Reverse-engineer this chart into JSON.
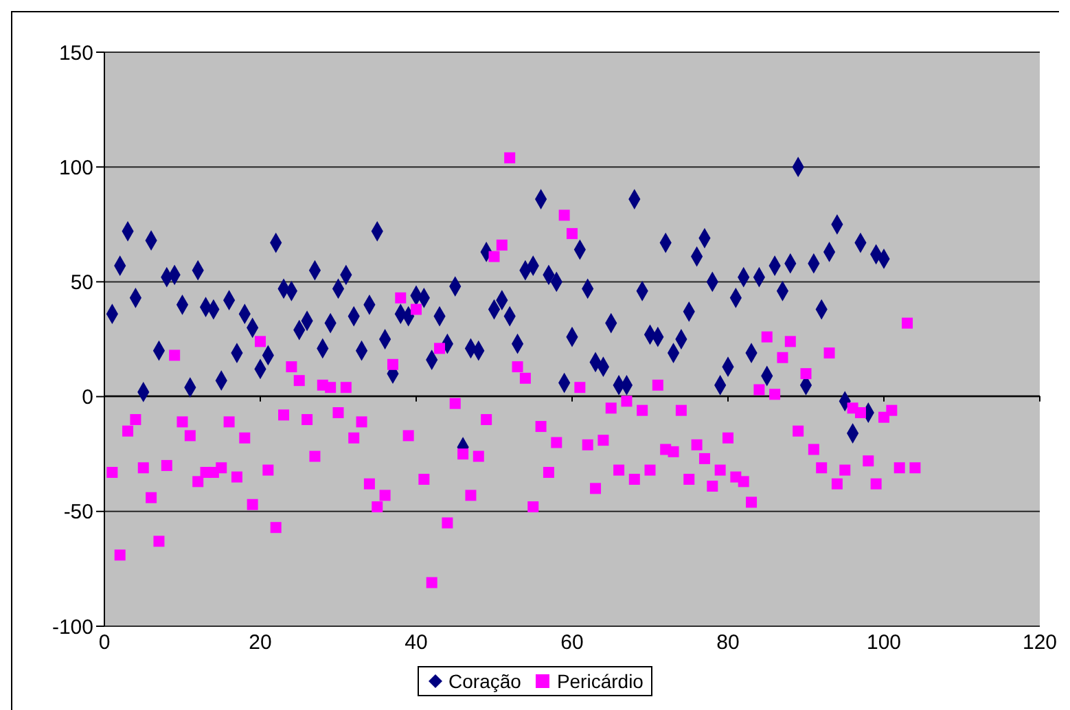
{
  "chart_data": {
    "type": "scatter",
    "xlim": [
      0,
      120
    ],
    "xticks": [
      0,
      20,
      40,
      60,
      80,
      100,
      120
    ],
    "ylim": [
      -100,
      150
    ],
    "yticks": [
      -100,
      -50,
      0,
      50,
      100,
      150
    ],
    "grid": "y",
    "legend": "bottom",
    "series": [
      {
        "name": "Coração",
        "color": "#000080",
        "marker": "diamond",
        "x": [
          1,
          2,
          3,
          4,
          5,
          6,
          7,
          8,
          9,
          10,
          11,
          12,
          13,
          14,
          15,
          16,
          17,
          18,
          19,
          20,
          21,
          22,
          23,
          24,
          25,
          26,
          27,
          28,
          29,
          30,
          31,
          32,
          33,
          34,
          35,
          36,
          37,
          38,
          39,
          40,
          41,
          42,
          43,
          44,
          45,
          46,
          47,
          48,
          49,
          50,
          51,
          52,
          53,
          54,
          55,
          56,
          57,
          58,
          59,
          60,
          61,
          62,
          63,
          64,
          65,
          66,
          67,
          68,
          69,
          70,
          71,
          72,
          73,
          74,
          75,
          76,
          77,
          78,
          79,
          80,
          81,
          82,
          83,
          84,
          85,
          86,
          87,
          88,
          89,
          90,
          91,
          92,
          93,
          94,
          95,
          96,
          97,
          98,
          99,
          100
        ],
        "values": [
          36,
          57,
          72,
          43,
          2,
          68,
          20,
          52,
          53,
          40,
          4,
          55,
          39,
          38,
          7,
          42,
          19,
          36,
          30,
          12,
          18,
          67,
          47,
          46,
          29,
          33,
          55,
          21,
          32,
          47,
          53,
          35,
          20,
          40,
          72,
          25,
          10,
          36,
          35,
          44,
          43,
          16,
          35,
          23,
          48,
          -22,
          21,
          20,
          63,
          38,
          42,
          35,
          23,
          55,
          57,
          86,
          53,
          50,
          6,
          26,
          64,
          47,
          15,
          13,
          32,
          5,
          5,
          86,
          46,
          27,
          26,
          67,
          19,
          25,
          37,
          61,
          69,
          50,
          5,
          13,
          43,
          52,
          19,
          52,
          9,
          57,
          46,
          58,
          100,
          5,
          58,
          38,
          63,
          75,
          -2,
          -16,
          67,
          -7,
          62,
          60
        ]
      },
      {
        "name": "Pericárdio",
        "color": "#ff00ff",
        "marker": "square",
        "x": [
          1,
          2,
          3,
          4,
          5,
          6,
          7,
          8,
          9,
          10,
          11,
          12,
          13,
          14,
          15,
          16,
          17,
          18,
          19,
          20,
          21,
          22,
          23,
          24,
          25,
          26,
          27,
          28,
          29,
          30,
          31,
          32,
          33,
          34,
          35,
          36,
          37,
          38,
          39,
          40,
          41,
          42,
          43,
          44,
          45,
          46,
          47,
          48,
          49,
          50,
          51,
          52,
          53,
          54,
          55,
          56,
          57,
          58,
          59,
          60,
          61,
          62,
          63,
          64,
          65,
          66,
          67,
          68,
          69,
          70,
          71,
          72,
          73,
          74,
          75,
          76,
          77,
          78,
          79,
          80,
          81,
          82,
          83,
          84,
          85,
          86,
          87,
          88,
          89,
          90,
          91,
          92,
          93,
          94,
          95,
          96,
          97,
          98,
          99,
          100,
          101,
          102,
          103,
          104
        ],
        "values": [
          -33,
          -69,
          -15,
          -10,
          -31,
          -44,
          -63,
          -30,
          18,
          -11,
          -17,
          -37,
          -33,
          -33,
          -31,
          -11,
          -35,
          -18,
          -47,
          24,
          -32,
          -57,
          -8,
          13,
          7,
          -10,
          -26,
          5,
          4,
          -7,
          4,
          -18,
          -11,
          -38,
          -48,
          -43,
          14,
          43,
          -17,
          38,
          -36,
          -81,
          21,
          -55,
          -3,
          -25,
          -43,
          -26,
          -10,
          61,
          66,
          104,
          13,
          8,
          -48,
          -13,
          -33,
          -20,
          79,
          71,
          4,
          -21,
          -40,
          -19,
          -5,
          -32,
          -2,
          -36,
          -6,
          -32,
          5,
          -23,
          -24,
          -6,
          -36,
          -21,
          -27,
          -39,
          -32,
          -18,
          -35,
          -37,
          -46,
          3,
          26,
          1,
          17,
          24,
          -15,
          10,
          -23,
          -31,
          19,
          -38,
          -32,
          -5,
          -7,
          -28,
          -38,
          -9,
          -6,
          -31,
          32,
          -31
        ]
      }
    ]
  }
}
